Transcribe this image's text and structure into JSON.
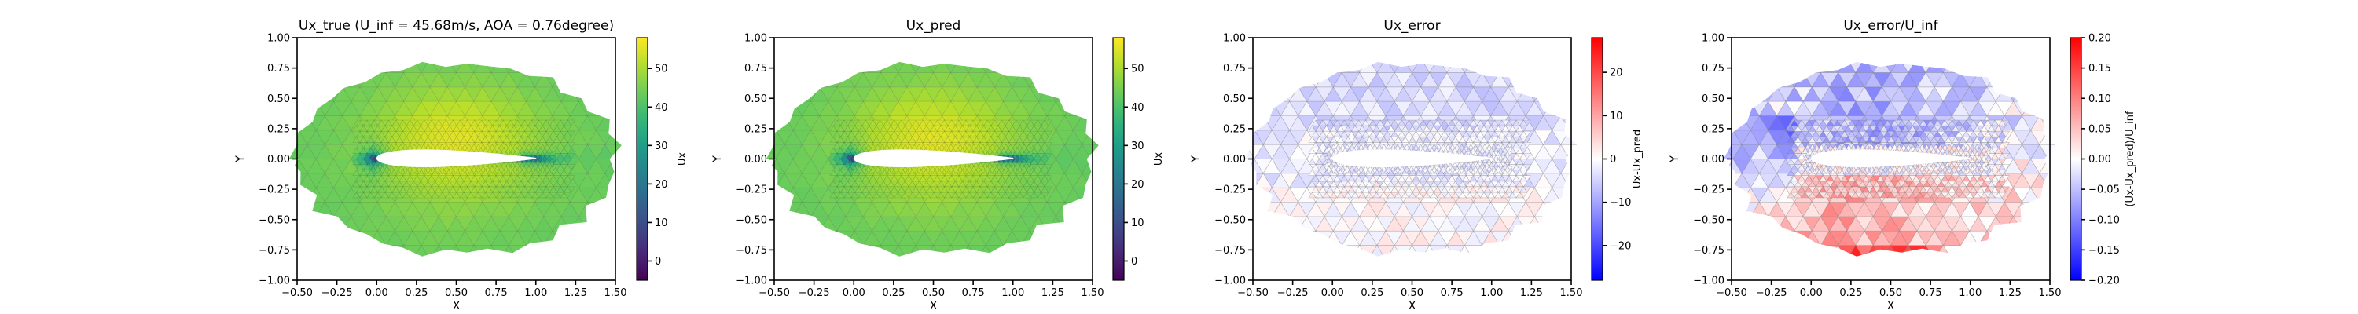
{
  "chart_data": [
    {
      "type": "heatmap",
      "title": "Ux_true (U_inf = 45.68m/s, AOA = 0.76degree)",
      "xlabel": "X",
      "ylabel": "Y",
      "xlim": [
        -0.5,
        1.5
      ],
      "ylim": [
        -1.0,
        1.0
      ],
      "x_ticks": [
        "−0.50",
        "−0.25",
        "0.00",
        "0.25",
        "0.50",
        "0.75",
        "1.00",
        "1.25",
        "1.50"
      ],
      "y_ticks": [
        "−1.00",
        "−0.75",
        "−0.50",
        "−0.25",
        "0.00",
        "0.25",
        "0.50",
        "0.75",
        "1.00"
      ],
      "colorbar": {
        "label": "Ux",
        "range": [
          -5,
          58
        ],
        "ticks": [
          0,
          10,
          20,
          30,
          40,
          50
        ],
        "colormap": "viridis"
      },
      "field": "velocity"
    },
    {
      "type": "heatmap",
      "title": "Ux_pred",
      "xlabel": "X",
      "ylabel": "Y",
      "xlim": [
        -0.5,
        1.5
      ],
      "ylim": [
        -1.0,
        1.0
      ],
      "x_ticks": [
        "−0.50",
        "−0.25",
        "0.00",
        "0.25",
        "0.50",
        "0.75",
        "1.00",
        "1.25",
        "1.50"
      ],
      "y_ticks": [
        "−1.00",
        "−0.75",
        "−0.50",
        "−0.25",
        "0.00",
        "0.25",
        "0.50",
        "0.75",
        "1.00"
      ],
      "colorbar": {
        "label": "Ux",
        "range": [
          -5,
          58
        ],
        "ticks": [
          0,
          10,
          20,
          30,
          40,
          50
        ],
        "colormap": "viridis"
      },
      "field": "velocity"
    },
    {
      "type": "heatmap",
      "title": "Ux_error",
      "xlabel": "X",
      "ylabel": "Y",
      "xlim": [
        -0.5,
        1.5
      ],
      "ylim": [
        -1.0,
        1.0
      ],
      "x_ticks": [
        "−0.50",
        "−0.25",
        "0.00",
        "0.25",
        "0.50",
        "0.75",
        "1.00",
        "1.25",
        "1.50"
      ],
      "y_ticks": [
        "−1.00",
        "−0.75",
        "−0.50",
        "−0.25",
        "0.00",
        "0.25",
        "0.50",
        "0.75",
        "1.00"
      ],
      "colorbar": {
        "label": "Ux-Ux_pred",
        "range": [
          -28,
          28
        ],
        "ticks": [
          -20,
          -10,
          0,
          10,
          20
        ],
        "colormap": "bwr"
      },
      "field": "error"
    },
    {
      "type": "heatmap",
      "title": "Ux_error/U_inf",
      "xlabel": "X",
      "ylabel": "Y",
      "xlim": [
        -0.5,
        1.5
      ],
      "ylim": [
        -1.0,
        1.0
      ],
      "x_ticks": [
        "−0.50",
        "−0.25",
        "0.00",
        "0.25",
        "0.50",
        "0.75",
        "1.00",
        "1.25",
        "1.50"
      ],
      "y_ticks": [
        "−1.00",
        "−0.75",
        "−0.50",
        "−0.25",
        "0.00",
        "0.25",
        "0.50",
        "0.75",
        "1.00"
      ],
      "colorbar": {
        "label": "(Ux-Ux_pred)/U_inf",
        "range": [
          -0.2,
          0.2
        ],
        "ticks": [
          "−0.20",
          "−0.15",
          "−0.10",
          "−0.05",
          "0.00",
          "0.05",
          "0.10",
          "0.15",
          "0.20"
        ],
        "colormap": "bwr"
      },
      "field": "relerror"
    }
  ]
}
